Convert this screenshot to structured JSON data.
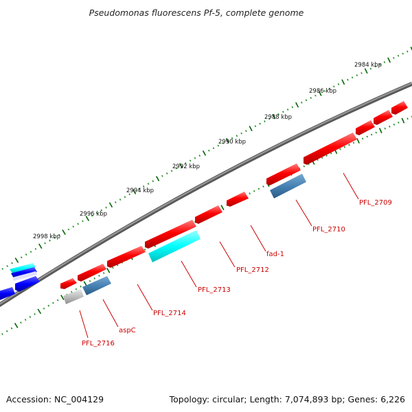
{
  "title": "Pseudomonas fluorescens Pf-5, complete genome",
  "footer": {
    "accession": "Accession: NC_004129",
    "summary": "Topology: circular; Length: 7,074,893 bp; Genes: 6,226"
  },
  "ticks": [
    {
      "label": "2984 kbp"
    },
    {
      "label": "2986 kbp"
    },
    {
      "label": "2988 kbp"
    },
    {
      "label": "2990 kbp"
    },
    {
      "label": "2992 kbp"
    },
    {
      "label": "2994 kbp"
    },
    {
      "label": "2996 kbp"
    },
    {
      "label": "2998 kbp"
    }
  ],
  "gene_labels": [
    {
      "id": "PFL_2709",
      "text": "PFL_2709"
    },
    {
      "id": "PFL_2710",
      "text": "PFL_2710"
    },
    {
      "id": "fad-1",
      "text": "fad-1"
    },
    {
      "id": "PFL_2712",
      "text": "PFL_2712"
    },
    {
      "id": "PFL_2713",
      "text": "PFL_2713"
    },
    {
      "id": "PFL_2714",
      "text": "PFL_2714"
    },
    {
      "id": "aspC",
      "text": "aspC"
    },
    {
      "id": "PFL_2716",
      "text": "PFL_2716"
    }
  ],
  "feature_colors": {
    "cds": "#ff0000",
    "cds_blue": "#4682b4",
    "cds_cyan": "#00ffff",
    "cds_gray": "#bebebe",
    "cds_other": "#0000ff",
    "backbone": "#808080",
    "tick_major": "#006400",
    "tick_minor": "#228b22",
    "label": "#cc0000"
  }
}
